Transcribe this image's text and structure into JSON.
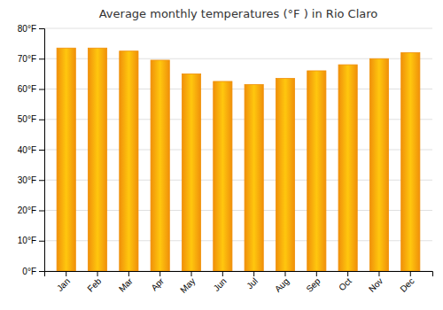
{
  "chart_data": {
    "type": "bar",
    "title": "Average monthly temperatures (°F ) in Rio Claro",
    "categories": [
      "Jan",
      "Feb",
      "Mar",
      "Apr",
      "May",
      "Jun",
      "Jul",
      "Aug",
      "Sep",
      "Oct",
      "Nov",
      "Dec"
    ],
    "values": [
      73.5,
      73.5,
      72.5,
      69.5,
      65.0,
      62.5,
      61.5,
      63.5,
      66.0,
      68.0,
      70.0,
      72.0
    ],
    "color": "#F0900A",
    "ylim": [
      0,
      80
    ],
    "yticks": [
      {
        "value": 0,
        "label": "0°F"
      },
      {
        "value": 10,
        "label": "10°F"
      },
      {
        "value": 20,
        "label": "20°F"
      },
      {
        "value": 30,
        "label": "30°F"
      },
      {
        "value": 40,
        "label": "40°F"
      },
      {
        "value": 50,
        "label": "50°F"
      },
      {
        "value": 60,
        "label": "60°F"
      },
      {
        "value": 70,
        "label": "70°F"
      },
      {
        "value": 80,
        "label": "80°F"
      }
    ],
    "grid": true
  }
}
